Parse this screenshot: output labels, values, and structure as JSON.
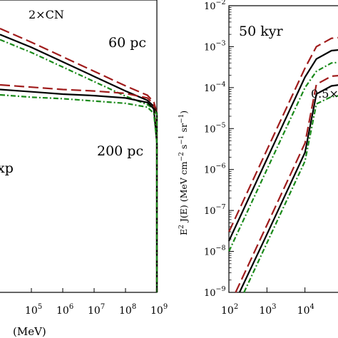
{
  "chart_data": [
    {
      "panel": "left",
      "type": "line",
      "xscale": "log",
      "yscale": "log",
      "xlim": [
        10000,
        1000000000
      ],
      "xtick_exponents": [
        5,
        6,
        7,
        8,
        9
      ],
      "xlabel_partial": "(MeV)",
      "annotations": [
        "2×CN",
        "60 pc",
        "200 pc",
        "xp"
      ],
      "series": [
        {
          "color": "#a01c1c",
          "style": "dashed",
          "group": "60 pc",
          "x": [
            10000,
            100000,
            1000000,
            10000000,
            100000000,
            500000000,
            800000000,
            1000000000
          ],
          "y": [
            1.0,
            0.84,
            0.67,
            0.5,
            0.33,
            0.22,
            0.14,
            0.02
          ]
        },
        {
          "color": "#000000",
          "style": "solid",
          "group": "60 pc",
          "x": [
            10000,
            100000,
            1000000,
            10000000,
            100000000,
            500000000,
            800000000,
            1000000000
          ],
          "y": [
            0.93,
            0.78,
            0.61,
            0.44,
            0.27,
            0.16,
            0.09,
            0.01
          ]
        },
        {
          "color": "#1a8a1a",
          "style": "dashdot",
          "group": "60 pc",
          "x": [
            10000,
            100000,
            1000000,
            10000000,
            100000000,
            500000000,
            800000000,
            1000000000
          ],
          "y": [
            0.87,
            0.72,
            0.55,
            0.38,
            0.21,
            0.11,
            0.06,
            0.0
          ]
        },
        {
          "color": "#a01c1c",
          "style": "dashed",
          "group": "200 pc",
          "x": [
            10000,
            100000,
            1000000,
            10000000,
            100000000,
            500000000,
            800000000,
            1000000000
          ],
          "y": [
            0.75,
            0.72,
            0.69,
            0.67,
            0.64,
            0.58,
            0.5,
            0.0
          ]
        },
        {
          "color": "#000000",
          "style": "solid",
          "group": "200 pc",
          "x": [
            10000,
            100000,
            1000000,
            10000000,
            100000000,
            500000000,
            800000000,
            1000000000
          ],
          "y": [
            0.69,
            0.66,
            0.63,
            0.61,
            0.58,
            0.52,
            0.44,
            0.0
          ]
        },
        {
          "color": "#1a8a1a",
          "style": "dashdot",
          "group": "200 pc",
          "x": [
            10000,
            100000,
            1000000,
            10000000,
            100000000,
            500000000,
            800000000,
            1000000000
          ],
          "y": [
            0.62,
            0.59,
            0.57,
            0.54,
            0.51,
            0.46,
            0.38,
            0.0
          ]
        }
      ]
    },
    {
      "panel": "right",
      "type": "line",
      "xscale": "log",
      "yscale": "log",
      "xlim": [
        100,
        100000
      ],
      "ylim": [
        1e-09,
        0.01
      ],
      "xtick_labels": [
        "10",
        "10",
        "10"
      ],
      "xtick_exponents": [
        "2",
        "3",
        "4"
      ],
      "ytick_labels": [
        "10",
        "10",
        "10",
        "10",
        "10",
        "10",
        "10",
        "10"
      ],
      "ytick_exponents": [
        "−9",
        "−8",
        "−7",
        "−6",
        "−5",
        "−4",
        "−3",
        "−2"
      ],
      "ylabel_main": "E",
      "ylabel_sup": "2",
      "ylabel_rest": " J(E) (MeV cm",
      "ylabel_sup2": "−2",
      "ylabel_s": " s",
      "ylabel_sup3": "−1",
      "ylabel_sr": " sr",
      "ylabel_sup4": "−1",
      "ylabel_end": ")",
      "annotations": [
        "50 kyr",
        "0.5×"
      ],
      "series": [
        {
          "color": "#a01c1c",
          "style": "dashed",
          "group": "upper",
          "x": [
            100,
            1000,
            10000,
            20000,
            50000,
            100000
          ],
          "y": [
            3e-08,
            3e-06,
            0.0003,
            0.001,
            0.0016,
            0.0017
          ]
        },
        {
          "color": "#000000",
          "style": "solid",
          "group": "upper",
          "x": [
            100,
            1000,
            10000,
            20000,
            50000,
            100000
          ],
          "y": [
            1.8e-08,
            1.8e-06,
            0.00018,
            0.0005,
            0.0008,
            0.00085
          ]
        },
        {
          "color": "#1a8a1a",
          "style": "dashdot",
          "group": "upper",
          "x": [
            100,
            1000,
            10000,
            20000,
            50000,
            100000
          ],
          "y": [
            1e-08,
            1e-06,
            0.0001,
            0.00025,
            0.0004,
            0.00042
          ]
        },
        {
          "color": "#a01c1c",
          "style": "dashed",
          "group": "lower",
          "x": [
            150,
            1000,
            10000,
            20000,
            50000,
            100000
          ],
          "y": [
            1e-09,
            4.4e-08,
            4.4e-06,
            0.00012,
            0.00019,
            0.0002
          ]
        },
        {
          "color": "#000000",
          "style": "solid",
          "group": "lower",
          "x": [
            190,
            1000,
            10000,
            20000,
            50000,
            100000
          ],
          "y": [
            1e-09,
            2.6e-08,
            2.6e-06,
            7e-05,
            0.00011,
            0.00012
          ]
        },
        {
          "color": "#1a8a1a",
          "style": "dashdot",
          "group": "lower",
          "x": [
            250,
            1000,
            10000,
            20000,
            50000,
            100000
          ],
          "y": [
            1e-09,
            1.6e-08,
            1.6e-06,
            4e-05,
            6e-05,
            6.5e-05
          ]
        }
      ]
    }
  ]
}
